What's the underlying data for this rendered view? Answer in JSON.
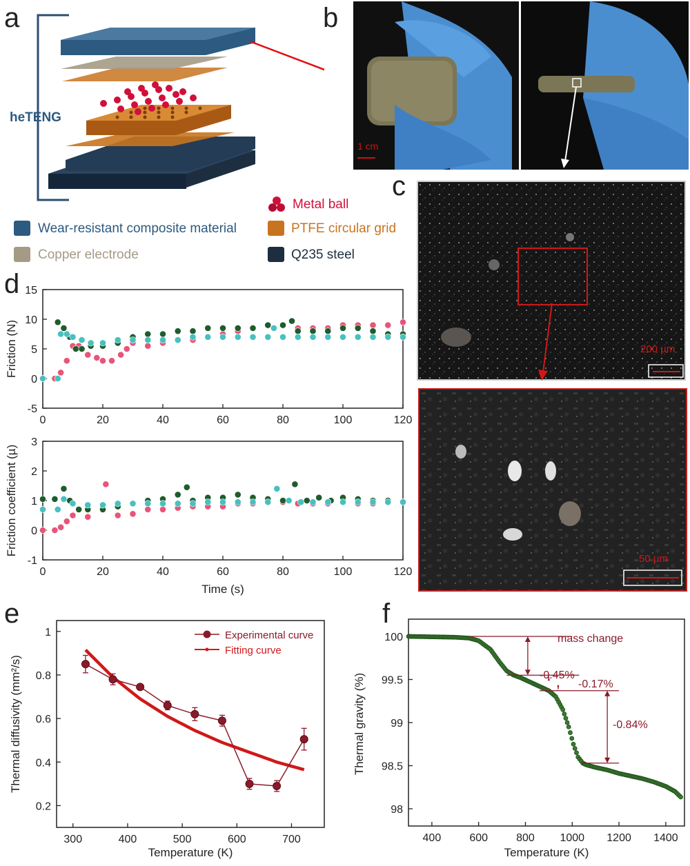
{
  "panels": {
    "a": "a",
    "b": "b",
    "c": "c",
    "d": "d",
    "e": "e",
    "f": "f"
  },
  "panel_a": {
    "heteng_label": "heTENG",
    "legend": [
      {
        "label": "Metal ball",
        "color": "#d0103a",
        "icon": "metal-ball-icon"
      },
      {
        "label": "Wear-resistant composite material",
        "color": "#2c5a80",
        "icon": "blue-block-icon"
      },
      {
        "label": "PTFE circular grid",
        "color": "#c8741e",
        "icon": "orange-block-icon"
      },
      {
        "label": "Copper electrode",
        "color": "#a59a86",
        "icon": "gray-block-icon"
      },
      {
        "label": "Q235 steel",
        "color": "#1c2e40",
        "icon": "navy-block-icon"
      }
    ]
  },
  "panel_b": {
    "scale": "1 cm"
  },
  "panel_c": {
    "scale_top": "200 µm",
    "scale_bottom": "50 µm"
  },
  "panel_d": {
    "top": {
      "ylabel": "Friction (N)",
      "xlim": [
        0,
        120
      ],
      "ylim": [
        -5,
        15
      ],
      "yticks": [
        -5,
        0,
        5,
        10,
        15
      ],
      "xticks": [
        0,
        20,
        40,
        60,
        80,
        100,
        120
      ]
    },
    "bottom": {
      "ylabel": "Friction coefficient (µ)",
      "xlabel": "Time (s)",
      "xlim": [
        0,
        120
      ],
      "ylim": [
        -1,
        3
      ],
      "yticks": [
        -1,
        0,
        1,
        2,
        3
      ],
      "xticks": [
        0,
        20,
        40,
        60,
        80,
        100,
        120
      ]
    }
  },
  "panel_e": {
    "ylabel": "Thermal diffusivity (mm²/s)",
    "xlabel": "Temperature (K)",
    "legend": [
      "Experimental curve",
      "Fitting curve"
    ]
  },
  "panel_f": {
    "ylabel": "Thermal gravity (%)",
    "xlabel": "Temperature (K)",
    "annotation_title": "mass change",
    "annotations": [
      "-0.45%",
      "-0.17%",
      "-0.84%"
    ]
  },
  "chart_data": [
    {
      "type": "scatter",
      "panel": "d-top",
      "ylabel": "Friction (N)",
      "xlim": [
        0,
        120
      ],
      "ylim": [
        -5,
        15
      ],
      "series": [
        {
          "color": "#e8557a",
          "points": [
            [
              0,
              0
            ],
            [
              4,
              0
            ],
            [
              6,
              1
            ],
            [
              8,
              3
            ],
            [
              10,
              5.5
            ],
            [
              12,
              5.5
            ],
            [
              15,
              4
            ],
            [
              18,
              3.5
            ],
            [
              20,
              3
            ],
            [
              23,
              3
            ],
            [
              26,
              4
            ],
            [
              28,
              5
            ],
            [
              30,
              6
            ],
            [
              35,
              5.5
            ],
            [
              40,
              6
            ],
            [
              45,
              6.5
            ],
            [
              50,
              6.5
            ],
            [
              55,
              7
            ],
            [
              60,
              7.5
            ],
            [
              65,
              8
            ],
            [
              70,
              8.5
            ],
            [
              75,
              9
            ],
            [
              80,
              9
            ],
            [
              85,
              8.5
            ],
            [
              90,
              8.5
            ],
            [
              95,
              8.5
            ],
            [
              100,
              9
            ],
            [
              105,
              9
            ],
            [
              110,
              9
            ],
            [
              115,
              9
            ],
            [
              120,
              9.5
            ]
          ]
        },
        {
          "color": "#1e5c2c",
          "points": [
            [
              5,
              9.5
            ],
            [
              7,
              8.5
            ],
            [
              9,
              7
            ],
            [
              11,
              5
            ],
            [
              13,
              5
            ],
            [
              16,
              5.5
            ],
            [
              20,
              5.5
            ],
            [
              25,
              6
            ],
            [
              30,
              7
            ],
            [
              35,
              7.5
            ],
            [
              40,
              7.5
            ],
            [
              45,
              8
            ],
            [
              50,
              8
            ],
            [
              55,
              8.5
            ],
            [
              60,
              8.5
            ],
            [
              65,
              8.5
            ],
            [
              70,
              8.5
            ],
            [
              75,
              9
            ],
            [
              80,
              9
            ],
            [
              83,
              9.7
            ],
            [
              85,
              8
            ],
            [
              90,
              8
            ],
            [
              95,
              8
            ],
            [
              100,
              8.5
            ],
            [
              105,
              8.5
            ],
            [
              110,
              8
            ],
            [
              115,
              7.5
            ],
            [
              120,
              7.5
            ]
          ]
        },
        {
          "color": "#48c0c0",
          "points": [
            [
              0,
              0
            ],
            [
              5,
              0
            ],
            [
              6,
              7.5
            ],
            [
              8,
              7.5
            ],
            [
              10,
              7
            ],
            [
              13,
              6.5
            ],
            [
              16,
              6
            ],
            [
              20,
              6
            ],
            [
              25,
              6.5
            ],
            [
              30,
              6.5
            ],
            [
              35,
              6.5
            ],
            [
              40,
              6.5
            ],
            [
              45,
              6.5
            ],
            [
              50,
              7
            ],
            [
              55,
              7
            ],
            [
              60,
              7
            ],
            [
              65,
              7
            ],
            [
              70,
              7
            ],
            [
              75,
              7
            ],
            [
              77,
              8.5
            ],
            [
              80,
              7
            ],
            [
              85,
              7
            ],
            [
              90,
              7
            ],
            [
              95,
              7
            ],
            [
              100,
              7
            ],
            [
              105,
              7
            ],
            [
              110,
              7
            ],
            [
              115,
              7
            ],
            [
              120,
              7
            ]
          ]
        }
      ]
    },
    {
      "type": "scatter",
      "panel": "d-bottom",
      "ylabel": "Friction coefficient (µ)",
      "xlabel": "Time (s)",
      "xlim": [
        0,
        120
      ],
      "ylim": [
        -1,
        3
      ],
      "series": [
        {
          "color": "#e8557a",
          "points": [
            [
              0,
              0
            ],
            [
              4,
              0
            ],
            [
              6,
              0.1
            ],
            [
              8,
              0.3
            ],
            [
              10,
              0.5
            ],
            [
              15,
              0.45
            ],
            [
              21,
              1.55
            ],
            [
              25,
              0.5
            ],
            [
              30,
              0.55
            ],
            [
              35,
              0.7
            ],
            [
              40,
              0.7
            ],
            [
              45,
              0.75
            ],
            [
              50,
              0.8
            ],
            [
              55,
              0.8
            ],
            [
              60,
              0.8
            ],
            [
              65,
              0.9
            ],
            [
              70,
              0.9
            ],
            [
              75,
              0.95
            ],
            [
              80,
              0.95
            ],
            [
              85,
              0.9
            ],
            [
              90,
              0.9
            ],
            [
              95,
              0.9
            ],
            [
              100,
              0.95
            ],
            [
              105,
              0.9
            ],
            [
              110,
              0.9
            ],
            [
              115,
              0.95
            ],
            [
              120,
              0.95
            ]
          ]
        },
        {
          "color": "#1e5c2c",
          "points": [
            [
              0,
              1.05
            ],
            [
              4,
              1.05
            ],
            [
              7,
              1.4
            ],
            [
              9,
              1.0
            ],
            [
              12,
              0.7
            ],
            [
              15,
              0.7
            ],
            [
              20,
              0.7
            ],
            [
              25,
              0.8
            ],
            [
              30,
              0.9
            ],
            [
              35,
              1.0
            ],
            [
              40,
              1.05
            ],
            [
              45,
              1.2
            ],
            [
              48,
              1.45
            ],
            [
              50,
              1.0
            ],
            [
              55,
              1.1
            ],
            [
              60,
              1.1
            ],
            [
              65,
              1.2
            ],
            [
              70,
              1.1
            ],
            [
              75,
              1.05
            ],
            [
              80,
              1.0
            ],
            [
              84,
              1.55
            ],
            [
              88,
              1.0
            ],
            [
              92,
              1.1
            ],
            [
              96,
              1.0
            ],
            [
              100,
              1.1
            ],
            [
              105,
              1.05
            ],
            [
              110,
              1.0
            ],
            [
              115,
              1.0
            ],
            [
              120,
              0.95
            ]
          ]
        },
        {
          "color": "#48c0c0",
          "points": [
            [
              0,
              0.7
            ],
            [
              5,
              0.7
            ],
            [
              7,
              1.05
            ],
            [
              10,
              0.9
            ],
            [
              15,
              0.85
            ],
            [
              20,
              0.85
            ],
            [
              25,
              0.9
            ],
            [
              30,
              0.9
            ],
            [
              35,
              0.9
            ],
            [
              40,
              0.9
            ],
            [
              45,
              0.9
            ],
            [
              50,
              0.9
            ],
            [
              55,
              0.95
            ],
            [
              60,
              0.95
            ],
            [
              65,
              0.95
            ],
            [
              70,
              0.95
            ],
            [
              75,
              0.95
            ],
            [
              78,
              1.4
            ],
            [
              82,
              1.0
            ],
            [
              86,
              0.95
            ],
            [
              90,
              0.95
            ],
            [
              95,
              0.95
            ],
            [
              100,
              0.95
            ],
            [
              105,
              0.95
            ],
            [
              110,
              0.95
            ],
            [
              115,
              0.95
            ],
            [
              120,
              0.95
            ]
          ]
        }
      ]
    },
    {
      "type": "line",
      "panel": "e",
      "xlabel": "Temperature (K)",
      "ylabel": "Thermal diffusivity (mm²/s)",
      "xlim": [
        270,
        760
      ],
      "ylim": [
        0.1,
        1.05
      ],
      "xticks": [
        300,
        400,
        500,
        600,
        700
      ],
      "yticks": [
        0.2,
        0.4,
        0.6,
        0.8,
        1.0
      ],
      "series": [
        {
          "name": "Experimental curve",
          "x": [
            323,
            373,
            423,
            473,
            523,
            573,
            623,
            673,
            723
          ],
          "y": [
            0.85,
            0.78,
            0.745,
            0.66,
            0.62,
            0.59,
            0.3,
            0.29,
            0.505
          ],
          "err": [
            0.04,
            0.025,
            0.0,
            0.02,
            0.03,
            0.025,
            0.025,
            0.025,
            0.05
          ]
        },
        {
          "name": "Fitting curve",
          "x": [
            323,
            373,
            423,
            473,
            523,
            573,
            623,
            673,
            723
          ],
          "y": [
            0.915,
            0.79,
            0.69,
            0.61,
            0.545,
            0.49,
            0.445,
            0.4,
            0.365
          ]
        }
      ]
    },
    {
      "type": "line",
      "panel": "f",
      "xlabel": "Temperature (K)",
      "ylabel": "Thermal gravity (%)",
      "xlim": [
        300,
        1480
      ],
      "ylim": [
        97.8,
        100.2
      ],
      "xticks": [
        400,
        600,
        800,
        1000,
        1200,
        1400
      ],
      "yticks": [
        98.0,
        98.5,
        99.0,
        99.5,
        100.0
      ],
      "series": [
        {
          "x": [
            300,
            400,
            500,
            560,
            600,
            650,
            690,
            720,
            750,
            780,
            820,
            860,
            900,
            930,
            960,
            985,
            1005,
            1025,
            1045,
            1060,
            1100,
            1150,
            1200,
            1250,
            1300,
            1350,
            1400,
            1440,
            1470
          ],
          "y": [
            100.0,
            99.995,
            99.99,
            99.98,
            99.95,
            99.85,
            99.7,
            99.6,
            99.55,
            99.52,
            99.47,
            99.42,
            99.37,
            99.3,
            99.15,
            98.95,
            98.75,
            98.6,
            98.53,
            98.51,
            98.48,
            98.45,
            98.41,
            98.38,
            98.35,
            98.31,
            98.26,
            98.2,
            98.12
          ]
        }
      ]
    }
  ]
}
